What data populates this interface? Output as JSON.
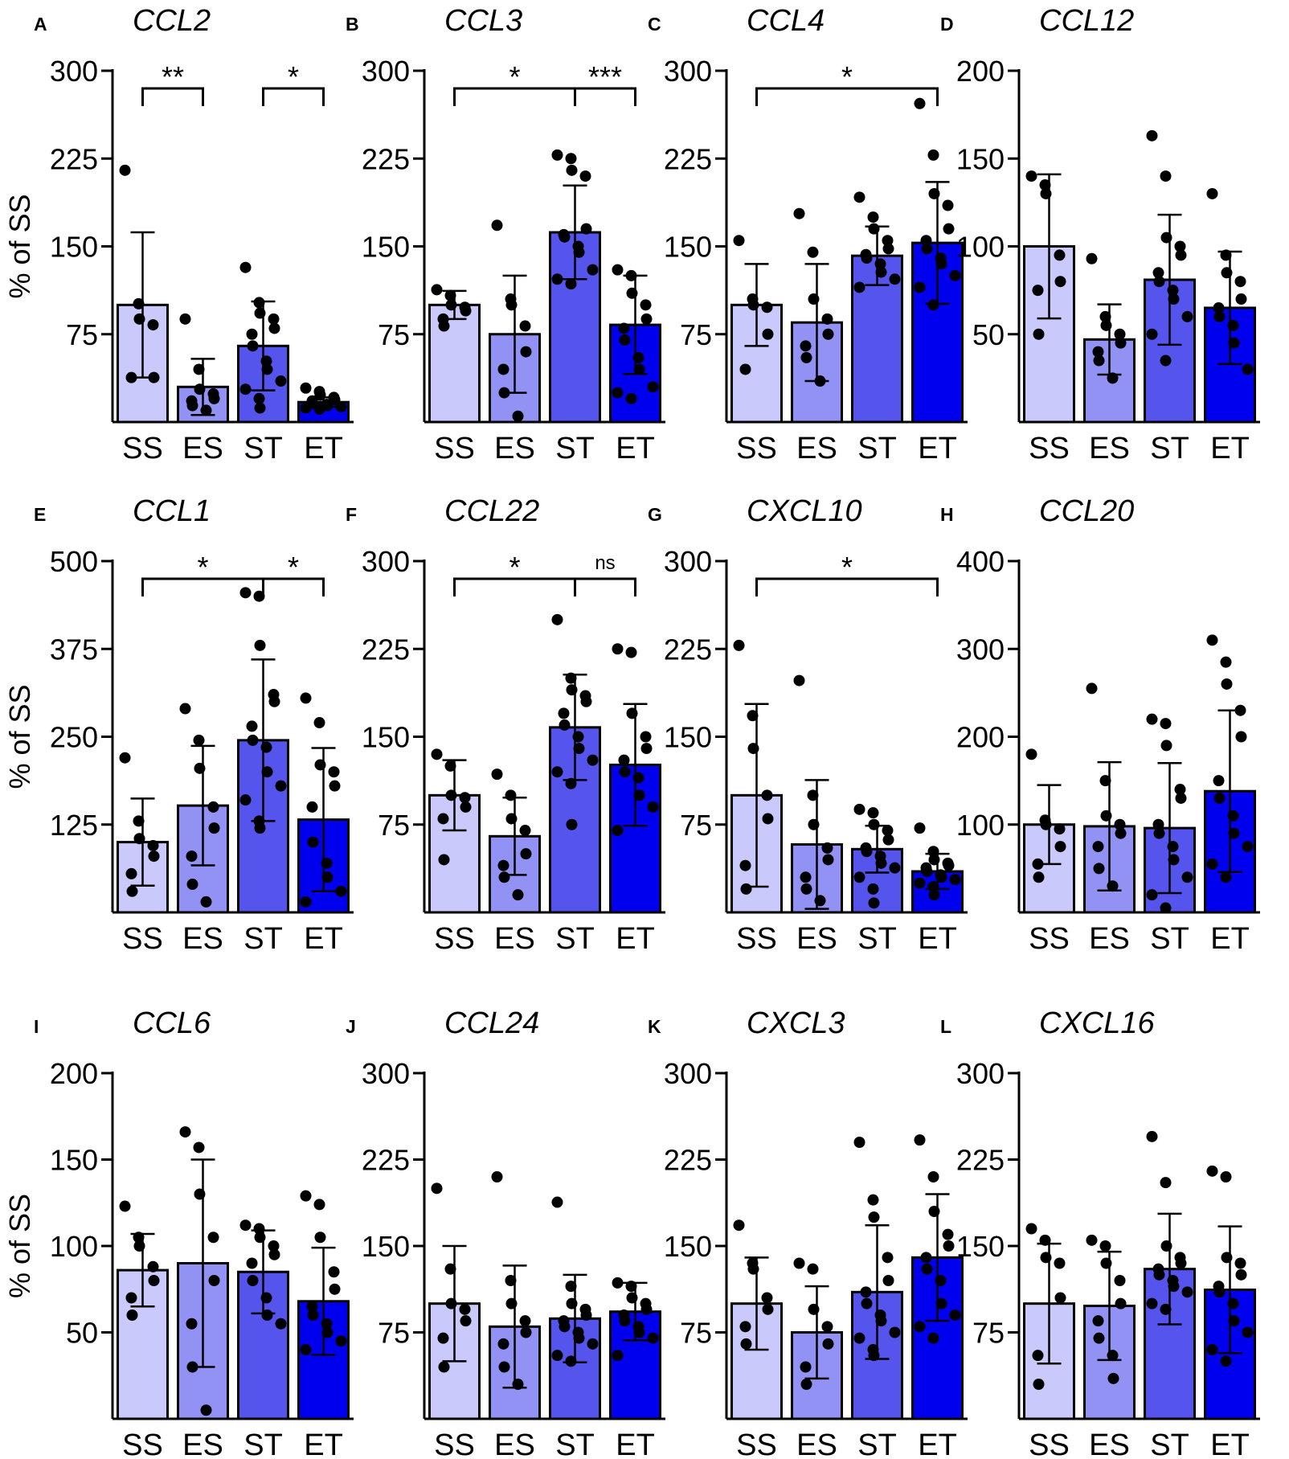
{
  "figure": {
    "y_axis_label": "% of SS",
    "groups": [
      "SS",
      "ES",
      "ST",
      "ET"
    ],
    "group_colors": [
      "#c9c9fb",
      "#9292f4",
      "#5555ee",
      "#0000ee"
    ]
  },
  "chart_data": [
    {
      "letter": "A",
      "title": "CCL2",
      "type": "bar",
      "yticks": [
        75,
        150,
        225,
        300
      ],
      "show_ylabel": true,
      "means": [
        100,
        30,
        65,
        17
      ],
      "sd": [
        62,
        24,
        38,
        4
      ],
      "points": [
        [
          215,
          101,
          88,
          83,
          38,
          38
        ],
        [
          88,
          45,
          28,
          24,
          20,
          18,
          14,
          10
        ],
        [
          132,
          102,
          93,
          88,
          80,
          75,
          65,
          52,
          45,
          35,
          28,
          20,
          12
        ],
        [
          29,
          26,
          23,
          21,
          19,
          18,
          16,
          15,
          14,
          13,
          12,
          11
        ]
      ],
      "sig": [
        {
          "from": 0,
          "to": 1,
          "label": "**"
        },
        {
          "from": 2,
          "to": 3,
          "label": "*"
        }
      ]
    },
    {
      "letter": "B",
      "title": "CCL3",
      "type": "bar",
      "yticks": [
        75,
        150,
        225,
        300
      ],
      "show_ylabel": false,
      "means": [
        100,
        75,
        162,
        83
      ],
      "sd": [
        12,
        50,
        40,
        42
      ],
      "points": [
        [
          113,
          108,
          100,
          98,
          95,
          88,
          82
        ],
        [
          168,
          105,
          100,
          82,
          60,
          45,
          25,
          5
        ],
        [
          228,
          225,
          215,
          210,
          165,
          160,
          158,
          150,
          145,
          130,
          122,
          118
        ],
        [
          130,
          125,
          110,
          100,
          88,
          80,
          70,
          55,
          45,
          30,
          25,
          20
        ]
      ],
      "sig": [
        {
          "from": 0,
          "to": 2,
          "label": "*"
        },
        {
          "from": 2,
          "to": 3,
          "label": "***"
        }
      ]
    },
    {
      "letter": "C",
      "title": "CCL4",
      "type": "bar",
      "yticks": [
        75,
        150,
        225,
        300
      ],
      "show_ylabel": false,
      "means": [
        100,
        85,
        142,
        153
      ],
      "sd": [
        35,
        50,
        25,
        52
      ],
      "points": [
        [
          155,
          105,
          100,
          98,
          75,
          45
        ],
        [
          178,
          145,
          105,
          88,
          75,
          65,
          55,
          35
        ],
        [
          192,
          175,
          165,
          155,
          148,
          143,
          140,
          135,
          128,
          122,
          115
        ],
        [
          272,
          228,
          195,
          185,
          165,
          155,
          148,
          140,
          135,
          125,
          115,
          100
        ]
      ],
      "sig": [
        {
          "from": 0,
          "to": 3,
          "label": "*"
        }
      ]
    },
    {
      "letter": "D",
      "title": "CCL12",
      "type": "bar",
      "yticks": [
        50,
        100,
        150,
        200
      ],
      "show_ylabel": false,
      "means": [
        100,
        47,
        81,
        65
      ],
      "sd": [
        41,
        20,
        37,
        32
      ],
      "points": [
        [
          140,
          135,
          130,
          95,
          80,
          75,
          50
        ],
        [
          93,
          60,
          55,
          50,
          45,
          40,
          35,
          25
        ],
        [
          163,
          140,
          105,
          100,
          95,
          85,
          80,
          75,
          70,
          60,
          50,
          35
        ],
        [
          130,
          95,
          85,
          80,
          70,
          65,
          60,
          55,
          45,
          30
        ]
      ],
      "sig": []
    },
    {
      "letter": "E",
      "title": "CCL1",
      "type": "bar",
      "yticks": [
        125,
        250,
        375,
        500
      ],
      "show_ylabel": true,
      "means": [
        100,
        152,
        245,
        132
      ],
      "sd": [
        62,
        85,
        115,
        102
      ],
      "points": [
        [
          220,
          130,
          105,
          95,
          80,
          55,
          30
        ],
        [
          290,
          245,
          205,
          150,
          120,
          80,
          40,
          15
        ],
        [
          455,
          450,
          380,
          310,
          300,
          265,
          245,
          235,
          200,
          180,
          160,
          130,
          120
        ],
        [
          305,
          270,
          210,
          200,
          180,
          150,
          100,
          70,
          50,
          30,
          15
        ]
      ],
      "sig": [
        {
          "from": 0,
          "to": 2,
          "label": "*"
        },
        {
          "from": 2,
          "to": 3,
          "label": "*"
        }
      ]
    },
    {
      "letter": "F",
      "title": "CCL22",
      "type": "bar",
      "yticks": [
        75,
        150,
        225,
        300
      ],
      "show_ylabel": false,
      "means": [
        100,
        65,
        158,
        126
      ],
      "sd": [
        30,
        33,
        45,
        52
      ],
      "points": [
        [
          135,
          125,
          100,
          98,
          90,
          80,
          45
        ],
        [
          118,
          100,
          80,
          70,
          50,
          40,
          30,
          15
        ],
        [
          250,
          200,
          190,
          185,
          180,
          170,
          160,
          150,
          140,
          130,
          120,
          110,
          75
        ],
        [
          225,
          222,
          170,
          150,
          140,
          130,
          120,
          115,
          100,
          90,
          70
        ]
      ],
      "sig": [
        {
          "from": 0,
          "to": 2,
          "label": "*"
        },
        {
          "from": 2,
          "to": 3,
          "label": "ns"
        }
      ]
    },
    {
      "letter": "G",
      "title": "CXCL10",
      "type": "bar",
      "yticks": [
        75,
        150,
        225,
        300
      ],
      "show_ylabel": false,
      "means": [
        100,
        58,
        54,
        35
      ],
      "sd": [
        78,
        55,
        20,
        15
      ],
      "points": [
        [
          228,
          168,
          140,
          100,
          80,
          40,
          20
        ],
        [
          198,
          100,
          75,
          55,
          45,
          30,
          20,
          10
        ],
        [
          88,
          85,
          75,
          70,
          62,
          55,
          52,
          48,
          42,
          38,
          30,
          20,
          8
        ],
        [
          72,
          52,
          45,
          42,
          40,
          38,
          35,
          32,
          30,
          28,
          25,
          22,
          15
        ]
      ],
      "sig": [
        {
          "from": 0,
          "to": 3,
          "label": "*"
        }
      ]
    },
    {
      "letter": "H",
      "title": "CCL20",
      "type": "bar",
      "yticks": [
        100,
        200,
        300,
        400
      ],
      "show_ylabel": false,
      "means": [
        100,
        98,
        96,
        138
      ],
      "sd": [
        45,
        73,
        74,
        92
      ],
      "points": [
        [
          180,
          105,
          100,
          95,
          75,
          55,
          40
        ],
        [
          255,
          150,
          110,
          100,
          90,
          75,
          50,
          30
        ],
        [
          220,
          215,
          190,
          140,
          130,
          100,
          90,
          75,
          60,
          40,
          20,
          5
        ],
        [
          310,
          285,
          260,
          230,
          200,
          150,
          130,
          110,
          90,
          75,
          55,
          40
        ]
      ],
      "sig": []
    },
    {
      "letter": "I",
      "title": "CCL6",
      "type": "bar",
      "yticks": [
        50,
        100,
        150,
        200
      ],
      "show_ylabel": true,
      "means": [
        86,
        90,
        85,
        68
      ],
      "sd": [
        21,
        60,
        24,
        31
      ],
      "points": [
        [
          123,
          105,
          100,
          88,
          80,
          70,
          60
        ],
        [
          166,
          157,
          130,
          105,
          80,
          55,
          30,
          5
        ],
        [
          112,
          110,
          105,
          100,
          95,
          90,
          80,
          70,
          60,
          55
        ],
        [
          129,
          124,
          105,
          85,
          75,
          65,
          60,
          55,
          50,
          45,
          40
        ]
      ],
      "sig": []
    },
    {
      "letter": "J",
      "title": "CCL24",
      "type": "bar",
      "yticks": [
        75,
        150,
        225,
        300
      ],
      "show_ylabel": false,
      "means": [
        100,
        80,
        87,
        93
      ],
      "sd": [
        50,
        53,
        38,
        25
      ],
      "points": [
        [
          200,
          130,
          100,
          95,
          85,
          70,
          45
        ],
        [
          210,
          120,
          100,
          85,
          75,
          65,
          45,
          30
        ],
        [
          188,
          115,
          100,
          95,
          90,
          85,
          80,
          75,
          70,
          65,
          55,
          50
        ],
        [
          118,
          115,
          105,
          100,
          95,
          90,
          85,
          80,
          75,
          70,
          55
        ]
      ],
      "sig": []
    },
    {
      "letter": "K",
      "title": "CXCL3",
      "type": "bar",
      "yticks": [
        75,
        150,
        225,
        300
      ],
      "show_ylabel": false,
      "means": [
        100,
        75,
        110,
        140
      ],
      "sd": [
        40,
        40,
        58,
        55
      ],
      "points": [
        [
          168,
          135,
          130,
          105,
          95,
          80,
          65
        ],
        [
          135,
          130,
          95,
          80,
          65,
          45,
          30
        ],
        [
          240,
          190,
          175,
          140,
          120,
          110,
          100,
          90,
          85,
          75,
          70,
          60,
          55
        ],
        [
          242,
          210,
          180,
          160,
          150,
          140,
          130,
          120,
          100,
          90,
          80,
          70
        ]
      ],
      "sig": []
    },
    {
      "letter": "L",
      "title": "CXCL16",
      "type": "bar",
      "yticks": [
        75,
        150,
        225,
        300
      ],
      "show_ylabel": false,
      "means": [
        100,
        98,
        130,
        112
      ],
      "sd": [
        52,
        47,
        48,
        55
      ],
      "points": [
        [
          165,
          155,
          140,
          135,
          105,
          55,
          30
        ],
        [
          155,
          150,
          135,
          120,
          100,
          85,
          70,
          55,
          35
        ],
        [
          245,
          205,
          150,
          140,
          135,
          130,
          125,
          120,
          115,
          110,
          100,
          95
        ],
        [
          215,
          210,
          140,
          135,
          125,
          115,
          110,
          100,
          85,
          75,
          60,
          50
        ]
      ],
      "sig": []
    }
  ]
}
